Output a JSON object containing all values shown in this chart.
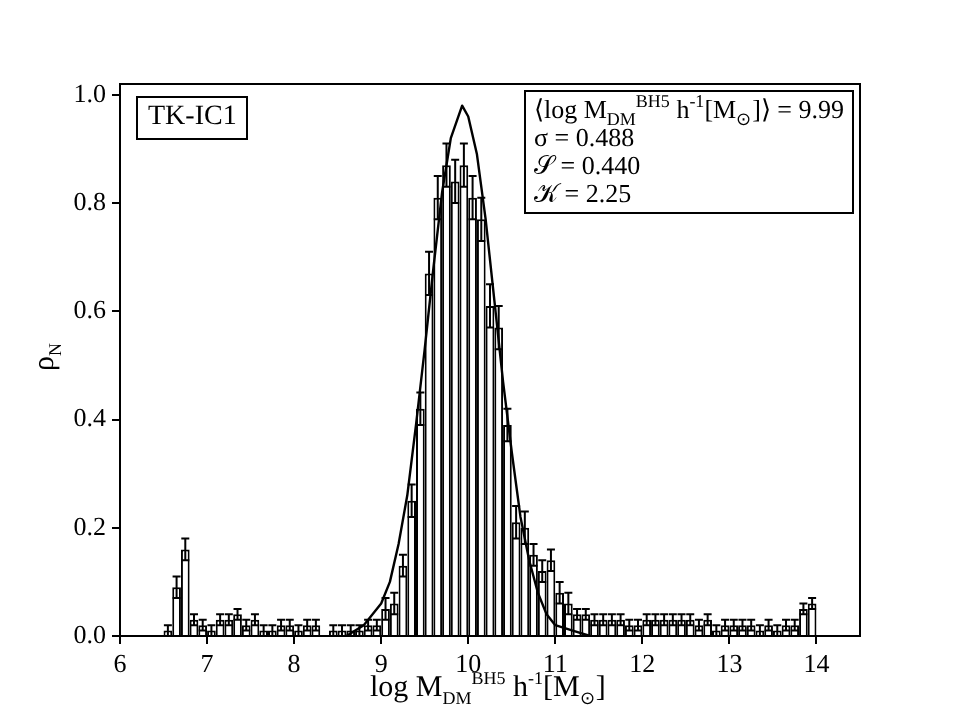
{
  "chart_data": {
    "type": "histogram",
    "xlabel": "log M$_{DM}$$^{BH5}$ h$^{-1}$[M$_{⊙}$]",
    "ylabel": "ρ$_{N}$",
    "annotations": [
      "TK-IC1",
      "⟨log M$_{DM}$$^{BH5}$ h$^{-1}$[M$_{⊙}$]⟩ = 9.99",
      "σ = 0.488",
      "𝒮 = 0.440",
      "𝒦 = 2.25"
    ],
    "xlim": [
      6,
      14.5
    ],
    "xticks": [
      6,
      7,
      8,
      9,
      10,
      11,
      12,
      13,
      14
    ],
    "ylim": [
      0,
      1.02
    ],
    "yticks": [
      {
        "value": 0,
        "label": "0.0"
      },
      0.2,
      0.4,
      0.6,
      0.8,
      {
        "value": 1,
        "label": "1.0"
      }
    ],
    "legend": false,
    "series": [
      {
        "color": "#000000",
        "bins": [
          6.5,
          6.6,
          6.7,
          6.8,
          6.9,
          7.0,
          7.1,
          7.2,
          7.3,
          7.4,
          7.5,
          7.6,
          7.7,
          7.8,
          7.9,
          8.0,
          8.1,
          8.2,
          8.3,
          8.4,
          8.5,
          8.6,
          8.7,
          8.8,
          8.9,
          9.0,
          9.1,
          9.2,
          9.3,
          9.4,
          9.5,
          9.6,
          9.7,
          9.8,
          9.9,
          10.0,
          10.1,
          10.2,
          10.3,
          10.4,
          10.5,
          10.6,
          10.7,
          10.8,
          10.9,
          11.0,
          11.1,
          11.2,
          11.3,
          11.4,
          11.5,
          11.6,
          11.7,
          11.8,
          11.9,
          12.0,
          12.1,
          12.2,
          12.3,
          12.4,
          12.5,
          12.6,
          12.7,
          12.8,
          12.9,
          13.0,
          13.1,
          13.2,
          13.3,
          13.4,
          13.5,
          13.6,
          13.7,
          13.8,
          13.9,
          14.0
        ],
        "values": [
          0.01,
          0.09,
          0.16,
          0.03,
          0.02,
          0.01,
          0.03,
          0.03,
          0.04,
          0.02,
          0.03,
          0.01,
          0.01,
          0.02,
          0.02,
          0.01,
          0.02,
          0.02,
          0,
          0.01,
          0.01,
          0.01,
          0.01,
          0.02,
          0.02,
          0.05,
          0.06,
          0.13,
          0.25,
          0.42,
          0.67,
          0.81,
          0.87,
          0.84,
          0.87,
          0.81,
          0.77,
          0.61,
          0.57,
          0.39,
          0.21,
          0.2,
          0.15,
          0.12,
          0.14,
          0.08,
          0.06,
          0.04,
          0.04,
          0.03,
          0.03,
          0.03,
          0.03,
          0.02,
          0.02,
          0.03,
          0.03,
          0.03,
          0.03,
          0.03,
          0.03,
          0.02,
          0.03,
          0.01,
          0.02,
          0.02,
          0.02,
          0.02,
          0.01,
          0.02,
          0.01,
          0.02,
          0.02,
          0.05,
          0.06
        ],
        "errors": [
          0.01,
          0.02,
          0.02,
          0.01,
          0.01,
          0.01,
          0.01,
          0.01,
          0.01,
          0.01,
          0.01,
          0.01,
          0.01,
          0.01,
          0.01,
          0.01,
          0.01,
          0.01,
          null,
          0.01,
          0.01,
          0.01,
          0.01,
          0.01,
          0.01,
          0.02,
          0.02,
          0.02,
          0.03,
          0.03,
          0.04,
          0.04,
          0.04,
          0.04,
          0.04,
          0.04,
          0.04,
          0.04,
          0.04,
          0.03,
          0.03,
          0.03,
          0.02,
          0.02,
          0.02,
          0.02,
          0.02,
          0.01,
          0.01,
          0.01,
          0.01,
          0.01,
          0.01,
          0.01,
          0.01,
          0.01,
          0.01,
          0.01,
          0.01,
          0.01,
          0.01,
          0.01,
          0.01,
          0.01,
          0.01,
          0.01,
          0.01,
          0.01,
          0.01,
          0.01,
          0.01,
          0.01,
          0.01,
          0.01,
          0.01
        ]
      },
      {
        "type": "line",
        "color": "#000000",
        "x": [
          8.6,
          8.8,
          9.0,
          9.1,
          9.2,
          9.3,
          9.4,
          9.5,
          9.6,
          9.7,
          9.8,
          9.93,
          10.0,
          10.1,
          10.2,
          10.3,
          10.4,
          10.5,
          10.6,
          10.7,
          10.8,
          10.9,
          11.0,
          11.2,
          11.4
        ],
        "values": [
          0,
          0.02,
          0.06,
          0.1,
          0.17,
          0.26,
          0.39,
          0.53,
          0.68,
          0.82,
          0.92,
          0.98,
          0.96,
          0.89,
          0.77,
          0.62,
          0.47,
          0.34,
          0.22,
          0.14,
          0.08,
          0.04,
          0.02,
          0.01,
          0
        ]
      }
    ]
  }
}
